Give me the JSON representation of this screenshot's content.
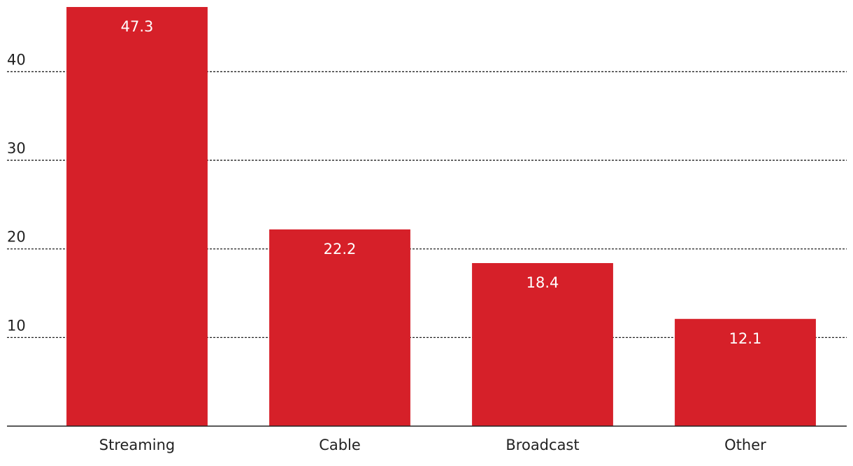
{
  "chart_data": {
    "type": "bar",
    "categories": [
      "Streaming",
      "Cable",
      "Broadcast",
      "Other"
    ],
    "values": [
      47.3,
      22.2,
      18.4,
      12.1
    ],
    "color": "#d62029",
    "ylim": [
      0,
      47.3
    ],
    "yticks": [
      10,
      20,
      30,
      40
    ],
    "grid": true
  }
}
